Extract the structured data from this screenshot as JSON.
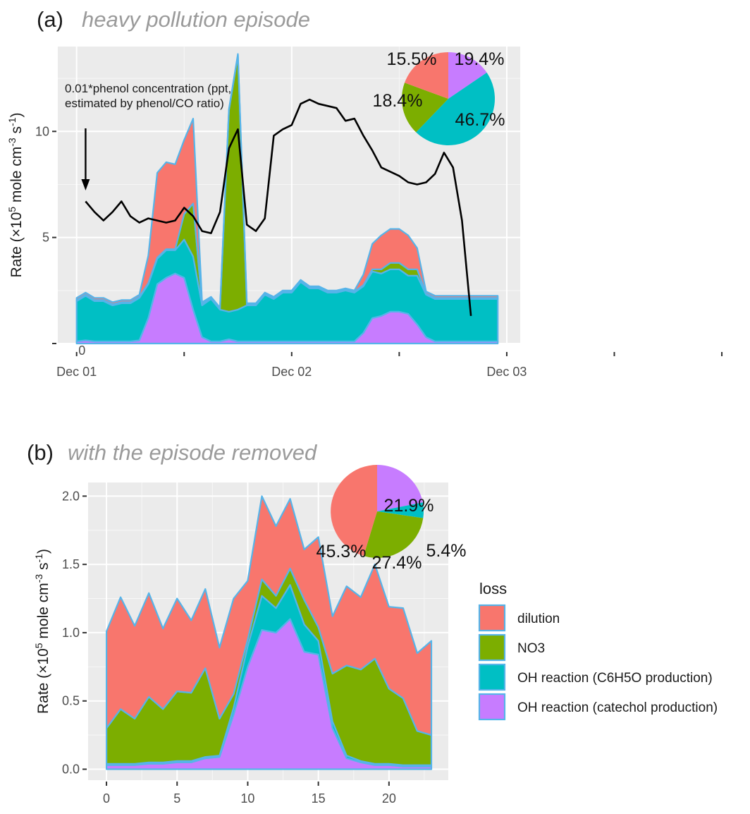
{
  "chart_data": [
    {
      "type": "area",
      "panel_label": "(a)",
      "title": "heavy pollution episode",
      "ylabel": "Rate (×10",
      "ylabel_sup": "5",
      "ylabel_mid": " mole cm",
      "ylabel_sup2": "-3",
      "ylabel_mid2": " s",
      "ylabel_sup3": "-1",
      "ylabel_end": ")",
      "ylim": [
        0,
        14
      ],
      "y_ticks": [
        5,
        10
      ],
      "y_tick_labels": [
        "5",
        "10"
      ],
      "zero_label": "0",
      "x_ticks": [
        0,
        6,
        12,
        18,
        24,
        30,
        36
      ],
      "x_tick_labels": [
        "Dec 01",
        "Dec 02",
        "Dec 03"
      ],
      "x_label_hours": [
        0,
        24,
        48
      ],
      "xlim": [
        -2.1,
        49.5
      ],
      "grid": true,
      "stacked": true,
      "x": [
        0,
        1,
        2,
        3,
        4,
        5,
        6,
        7,
        8,
        9,
        10,
        11,
        12,
        13,
        14,
        15,
        16,
        17,
        18,
        19,
        20,
        21,
        22,
        23,
        24,
        25,
        26,
        27,
        28,
        29,
        30,
        31,
        32,
        33,
        34,
        35,
        36,
        37,
        38,
        39,
        40,
        41,
        42,
        43,
        44,
        45,
        46,
        47
      ],
      "series": [
        {
          "name": "OH reaction (catechol production)",
          "color": "#C77CFF",
          "values": [
            0.1,
            0.15,
            0.1,
            0.1,
            0.1,
            0.1,
            0.1,
            0.15,
            1.2,
            2.8,
            3.1,
            3.3,
            3.1,
            1.6,
            0.3,
            0.1,
            0.1,
            0.2,
            0.1,
            0.1,
            0.1,
            0.1,
            0.1,
            0.1,
            0.1,
            0.1,
            0.1,
            0.1,
            0.1,
            0.1,
            0.1,
            0.1,
            0.5,
            1.2,
            1.3,
            1.5,
            1.5,
            1.4,
            0.9,
            0.3,
            0.1,
            0.1,
            0.1,
            0.1,
            0.1,
            0.1,
            0.1,
            0.1
          ]
        },
        {
          "name": "OH reaction (C6H5O production)",
          "color": "#00BFC4",
          "values": [
            1.9,
            2.1,
            1.9,
            1.9,
            1.7,
            1.8,
            1.8,
            2.0,
            1.6,
            1.2,
            1.3,
            1.1,
            1.8,
            2.5,
            1.5,
            2.0,
            1.5,
            1.3,
            1.5,
            1.7,
            1.7,
            2.2,
            2.0,
            2.3,
            2.3,
            2.8,
            2.5,
            2.5,
            2.3,
            2.3,
            2.4,
            2.3,
            2.2,
            2.2,
            2.0,
            2.0,
            2.0,
            1.8,
            2.3,
            2.0,
            2.0,
            2.0,
            2.0,
            2.0,
            2.0,
            2.0,
            2.0,
            2.0
          ]
        },
        {
          "name": "NO3",
          "color": "#7CAE00",
          "values": [
            0.05,
            0.05,
            0.05,
            0.05,
            0.05,
            0.05,
            0.05,
            0.05,
            0.05,
            0.05,
            0.05,
            0.05,
            1.2,
            2.5,
            0.05,
            0.05,
            0.05,
            9.5,
            12.0,
            0.05,
            0.05,
            0.05,
            0.05,
            0.05,
            0.05,
            0.05,
            0.05,
            0.05,
            0.05,
            0.05,
            0.05,
            0.05,
            0.05,
            0.1,
            0.2,
            0.3,
            0.3,
            0.3,
            0.3,
            0.05,
            0.05,
            0.05,
            0.05,
            0.05,
            0.05,
            0.05,
            0.05,
            0.05
          ]
        },
        {
          "name": "dilution",
          "color": "#F8766D",
          "values": [
            0.1,
            0.1,
            0.1,
            0.1,
            0.1,
            0.1,
            0.1,
            0.1,
            1.3,
            4.0,
            4.1,
            4.0,
            3.5,
            4.0,
            0.1,
            0.05,
            0.05,
            0.05,
            0.05,
            0.05,
            0.05,
            0.05,
            0.05,
            0.05,
            0.05,
            0.05,
            0.05,
            0.05,
            0.05,
            0.05,
            0.05,
            0.05,
            0.5,
            1.2,
            1.6,
            1.6,
            1.6,
            1.6,
            1.0,
            0.1,
            0.1,
            0.1,
            0.1,
            0.1,
            0.1,
            0.1,
            0.1,
            0.1
          ]
        }
      ],
      "line": {
        "name": "0.01*phenol concentration (ppt, estimated by phenol/CO ratio)",
        "color": "#000000",
        "x": [
          1,
          2,
          3,
          4,
          5,
          6,
          7,
          8,
          9,
          10,
          11,
          12,
          13,
          14,
          15,
          16,
          17,
          18,
          19,
          20,
          21,
          22,
          23,
          24,
          25,
          26,
          27,
          28,
          29,
          30,
          31,
          32,
          33,
          34,
          35,
          36,
          37,
          38,
          39,
          40,
          41,
          42,
          43,
          44,
          45
        ],
        "values": [
          6.7,
          6.2,
          5.8,
          6.2,
          6.7,
          6.0,
          5.7,
          5.9,
          5.8,
          5.7,
          5.8,
          6.4,
          6.0,
          5.3,
          5.2,
          6.2,
          9.2,
          10.1,
          5.6,
          5.3,
          5.9,
          9.8,
          10.1,
          10.3,
          11.3,
          11.5,
          11.3,
          11.2,
          11.1,
          10.5,
          10.6,
          9.8,
          9.1,
          8.3,
          8.1,
          7.9,
          7.6,
          7.5,
          7.6,
          8.0,
          9.0,
          8.3,
          5.8,
          1.3,
          null
        ]
      },
      "annotation_lines": [
        "0.01*phenol concentration (ppt,",
        "estimated by phenol/CO ratio)"
      ],
      "pie": {
        "order": [
          "OH reaction (C6H5O production)",
          "NO3",
          "dilution",
          "OH reaction (catechol production)"
        ],
        "values": [
          15.5,
          46.7,
          18.4,
          19.4
        ],
        "labels": [
          "15.5%",
          "46.7%",
          "18.4%",
          "19.4%"
        ],
        "colors": [
          "#C77CFF",
          "#00BFC4",
          "#7CAE00",
          "#F8766D"
        ]
      }
    },
    {
      "type": "area",
      "panel_label": "(b)",
      "title": "with the episode removed",
      "ylabel": "Rate (×10",
      "ylabel_sup": "5",
      "ylabel_mid": " mole cm",
      "ylabel_sup2": "-3",
      "ylabel_mid2": " s",
      "ylabel_sup3": "-1",
      "ylabel_end": ")",
      "ylim": [
        -0.08,
        2.1
      ],
      "y_ticks": [
        0.0,
        0.5,
        1.0,
        1.5,
        2.0
      ],
      "y_tick_labels": [
        "0.0",
        "0.5",
        "1.0",
        "1.5",
        "2.0"
      ],
      "x_ticks": [
        0,
        5,
        10,
        15,
        20
      ],
      "x_tick_labels": [
        "0",
        "5",
        "10",
        "15",
        "20"
      ],
      "xlim": [
        -1.3,
        24.2
      ],
      "grid": true,
      "stacked": true,
      "x": [
        0,
        1,
        2,
        3,
        4,
        5,
        6,
        7,
        8,
        9,
        10,
        11,
        12,
        13,
        14,
        15,
        16,
        17,
        18,
        19,
        20,
        21,
        22,
        23
      ],
      "series": [
        {
          "name": "OH reaction (catechol production)",
          "color": "#C77CFF",
          "values": [
            0.03,
            0.03,
            0.03,
            0.04,
            0.04,
            0.05,
            0.05,
            0.08,
            0.09,
            0.4,
            0.75,
            1.02,
            1.0,
            1.1,
            0.86,
            0.84,
            0.3,
            0.08,
            0.05,
            0.03,
            0.03,
            0.02,
            0.02,
            0.02
          ]
        },
        {
          "name": "OH reaction (C6H5O production)",
          "color": "#00BFC4",
          "values": [
            0.01,
            0.01,
            0.01,
            0.01,
            0.01,
            0.01,
            0.01,
            0.01,
            0.01,
            0.05,
            0.15,
            0.25,
            0.18,
            0.25,
            0.2,
            0.1,
            0.05,
            0.02,
            0.01,
            0.01,
            0.01,
            0.01,
            0.01,
            0.01
          ]
        },
        {
          "name": "NO3",
          "color": "#7CAE00",
          "values": [
            0.26,
            0.4,
            0.33,
            0.48,
            0.39,
            0.51,
            0.5,
            0.65,
            0.27,
            0.1,
            0.05,
            0.12,
            0.09,
            0.12,
            0.18,
            0.1,
            0.35,
            0.66,
            0.67,
            0.77,
            0.55,
            0.49,
            0.25,
            0.22
          ]
        },
        {
          "name": "dilution",
          "color": "#F8766D",
          "values": [
            0.71,
            0.82,
            0.68,
            0.76,
            0.59,
            0.68,
            0.53,
            0.58,
            0.52,
            0.7,
            0.43,
            0.61,
            0.51,
            0.51,
            0.37,
            0.66,
            0.42,
            0.58,
            0.53,
            0.69,
            0.6,
            0.66,
            0.57,
            0.69
          ]
        }
      ],
      "pie": {
        "order": [
          "OH reaction (catechol production)",
          "OH reaction (C6H5O production)",
          "NO3",
          "dilution"
        ],
        "values": [
          21.9,
          5.4,
          27.4,
          45.3
        ],
        "labels": [
          "21.9%",
          "5.4%",
          "27.4%",
          "45.3%"
        ],
        "colors": [
          "#C77CFF",
          "#00BFC4",
          "#7CAE00",
          "#F8766D"
        ]
      },
      "legend": {
        "title": "loss",
        "position": "right",
        "items": [
          {
            "label": "dilution",
            "color": "#F8766D"
          },
          {
            "label": "NO3",
            "color": "#7CAE00"
          },
          {
            "label": "OH reaction (C6H5O production)",
            "color": "#00BFC4"
          },
          {
            "label": "OH reaction (catechol production)",
            "color": "#C77CFF"
          }
        ]
      }
    }
  ]
}
